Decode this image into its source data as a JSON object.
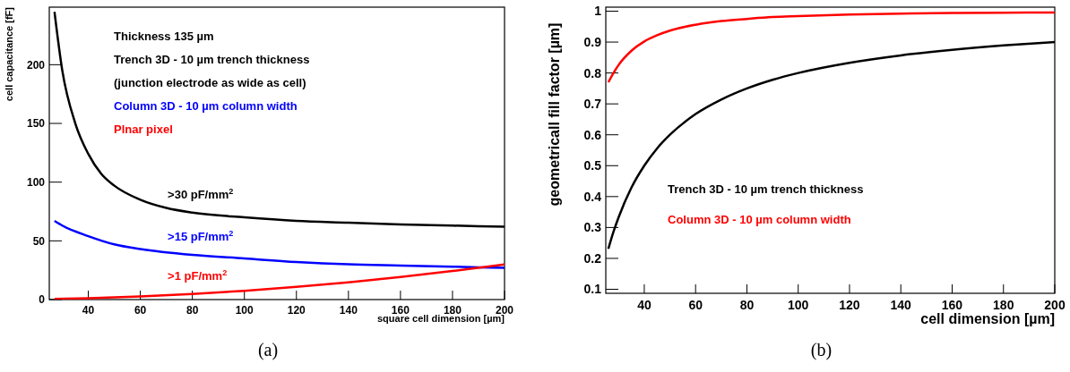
{
  "chart_data": [
    {
      "type": "line",
      "title": "(a)",
      "xlabel": "square cell dimension [µm]",
      "ylabel": "cell capacitance [fF]",
      "xlim": [
        25,
        200
      ],
      "ylim": [
        0,
        249
      ],
      "xticks": [
        40,
        60,
        80,
        100,
        120,
        140,
        160,
        180,
        200
      ],
      "yticks": [
        0,
        50,
        100,
        150,
        200
      ],
      "legend": "top left",
      "grid": false,
      "line_style": "solid",
      "annotations": [
        "Thickness 135 µm",
        "(junction electrode as wide as cell)",
        ">30 pF/mm$^{2}$",
        ">15 pF/mm$^{2}$",
        ">1 pF/mm$^{2}$"
      ],
      "series": [
        {
          "name": "Trench 3D - 10 µm trench thickness",
          "color": "#000000",
          "x": [
            27,
            30,
            35,
            40,
            45,
            50,
            60,
            70,
            80,
            100,
            120,
            140,
            160,
            180,
            200
          ],
          "values": [
            245,
            195,
            150,
            124,
            107,
            97,
            85,
            78,
            74,
            70,
            67,
            65.5,
            64,
            63,
            62
          ]
        },
        {
          "name": "Column 3D  - 10 µm column width",
          "color": "#0000ff",
          "x": [
            27,
            30,
            40,
            50,
            60,
            80,
            100,
            120,
            140,
            160,
            180,
            200
          ],
          "values": [
            67,
            63,
            54,
            47,
            43,
            38,
            35,
            32,
            30,
            29,
            28,
            27
          ]
        },
        {
          "name": "Plnar pixel",
          "color": "#ff0000",
          "x": [
            27,
            40,
            60,
            80,
            100,
            120,
            140,
            160,
            180,
            200
          ],
          "values": [
            0.5,
            1.2,
            2.7,
            4.8,
            7.5,
            10.8,
            14.7,
            19.2,
            24.3,
            30
          ]
        }
      ]
    },
    {
      "type": "line",
      "title": "(b)",
      "xlabel": "cell dimension [µm]",
      "ylabel": "geometricall fill factor [µm]",
      "xlim": [
        25,
        200
      ],
      "ylim": [
        0.087,
        1.013
      ],
      "xticks": [
        40,
        60,
        80,
        100,
        120,
        140,
        160,
        180,
        200
      ],
      "yticks": [
        0.1,
        0.2,
        0.3,
        0.4,
        0.5,
        0.6,
        0.7,
        0.8,
        0.9,
        1
      ],
      "legend": "left",
      "grid": false,
      "line_style": "solid",
      "series": [
        {
          "name": "Trench 3D -  10 µm trench thickness",
          "color": "#000000",
          "x": [
            26,
            28,
            30,
            35,
            40,
            45,
            50,
            60,
            70,
            80,
            90,
            100,
            120,
            140,
            160,
            180,
            200
          ],
          "values": [
            0.231,
            0.286,
            0.333,
            0.429,
            0.5,
            0.556,
            0.6,
            0.667,
            0.714,
            0.75,
            0.778,
            0.8,
            0.833,
            0.857,
            0.875,
            0.889,
            0.9
          ]
        },
        {
          "name": "Column 3D  - 10 µm column width",
          "color": "#ff0000",
          "x": [
            26,
            28,
            30,
            35,
            40,
            45,
            50,
            60,
            70,
            80,
            90,
            100,
            120,
            140,
            160,
            180,
            200
          ],
          "values": [
            0.77,
            0.8,
            0.826,
            0.872,
            0.902,
            0.922,
            0.937,
            0.956,
            0.968,
            0.975,
            0.981,
            0.984,
            0.989,
            0.992,
            0.994,
            0.995,
            0.996
          ]
        }
      ]
    }
  ]
}
